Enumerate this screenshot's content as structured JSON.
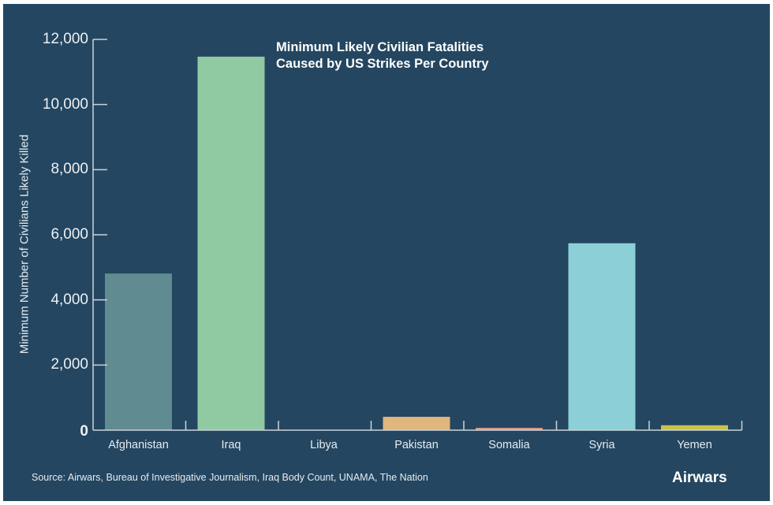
{
  "chart_data": {
    "type": "bar",
    "title": "Minimum Likely Civilian Fatalities Caused by US Strikes Per Country",
    "title_lines": [
      "Minimum Likely Civilian Fatalities",
      "Caused by US Strikes Per Country"
    ],
    "xlabel": "",
    "ylabel": "Minimum Number of Civilians Likely Killed",
    "ylim": [
      0,
      12000
    ],
    "yticks": [
      0,
      2000,
      4000,
      6000,
      8000,
      10000,
      12000
    ],
    "ytick_labels": [
      "0",
      "2,000",
      "4,000",
      "6,000",
      "8,000",
      "10,000",
      "12,000"
    ],
    "grid": false,
    "legend": null,
    "categories": [
      "Afghanistan",
      "Iraq",
      "Libya",
      "Pakistan",
      "Somalia",
      "Syria",
      "Yemen"
    ],
    "values": [
      4810,
      11470,
      10,
      410,
      70,
      5740,
      150
    ],
    "colors": [
      "#5f8b91",
      "#8fcaa2",
      "#3a6b8a",
      "#dfb67c",
      "#e1998a",
      "#8ccfd6",
      "#c6c44a"
    ],
    "source": "Source: Airwars, Bureau of Investigative Journalism, Iraq Body Count, UNAMA, The Nation",
    "brand": "Airwars"
  },
  "colors": {
    "background": "#244660",
    "axis": "#c9d3dc",
    "text": "#e6ebef"
  }
}
